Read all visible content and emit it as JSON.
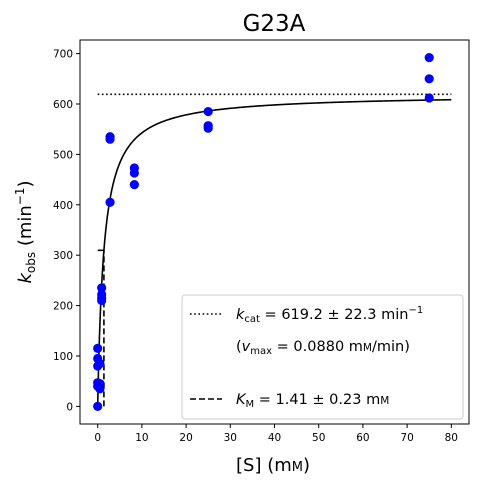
{
  "chart_data": {
    "type": "scatter",
    "title": "G23A",
    "xlabel": {
      "base": "[S] (m",
      "smallcaps": "M",
      "close": ")"
    },
    "ylabel": {
      "k": "k",
      "sub": "obs",
      "unit": "(min",
      "sup": "−1",
      "close": ")"
    },
    "xlim": [
      -4,
      84
    ],
    "ylim": [
      -35,
      727
    ],
    "x_ticks": [
      0,
      10,
      20,
      30,
      40,
      50,
      60,
      70,
      80
    ],
    "y_ticks": [
      0,
      100,
      200,
      300,
      400,
      500,
      600,
      700
    ],
    "points_color": "#0000ff",
    "points": [
      [
        0,
        0
      ],
      [
        0,
        40
      ],
      [
        0,
        47
      ],
      [
        0,
        80
      ],
      [
        0,
        95
      ],
      [
        0,
        115
      ],
      [
        0.5,
        35
      ],
      [
        0.5,
        45
      ],
      [
        0.5,
        85
      ],
      [
        0.9,
        210
      ],
      [
        0.9,
        215
      ],
      [
        0.9,
        222
      ],
      [
        0.9,
        235
      ],
      [
        2.8,
        405
      ],
      [
        2.8,
        530
      ],
      [
        2.8,
        535
      ],
      [
        8.3,
        440
      ],
      [
        8.3,
        463
      ],
      [
        8.3,
        473
      ],
      [
        25,
        552
      ],
      [
        25,
        557
      ],
      [
        25,
        585
      ],
      [
        75,
        612
      ],
      [
        75,
        650
      ],
      [
        75,
        692
      ]
    ],
    "fit_curve": {
      "model": "michaelis-menten",
      "kcat": 619.2,
      "KM": 1.41,
      "x_range": [
        0,
        80
      ]
    },
    "kcat_line": {
      "y": 619.2,
      "x_range": [
        0,
        80
      ],
      "style": "dotted"
    },
    "km_marker": {
      "x": 1.41,
      "y_top": 309.6,
      "hline_x_range": [
        0,
        1.41
      ],
      "style": "dashed"
    },
    "legend": {
      "location": "lower right",
      "kcat_entry": {
        "k": "k",
        "sub": "cat",
        "text": " = 619.2 ± 22.3 min",
        "sup": "−1"
      },
      "vmax_entry": {
        "open": "(",
        "v": "v",
        "sub": "max",
        "text": " = 0.0880 m",
        "smallcaps": "M",
        "close": "/min)"
      },
      "km_entry": {
        "k": "K",
        "sub": "M",
        "text": " = 1.41 ± 0.23 m",
        "smallcaps": "M"
      }
    }
  }
}
